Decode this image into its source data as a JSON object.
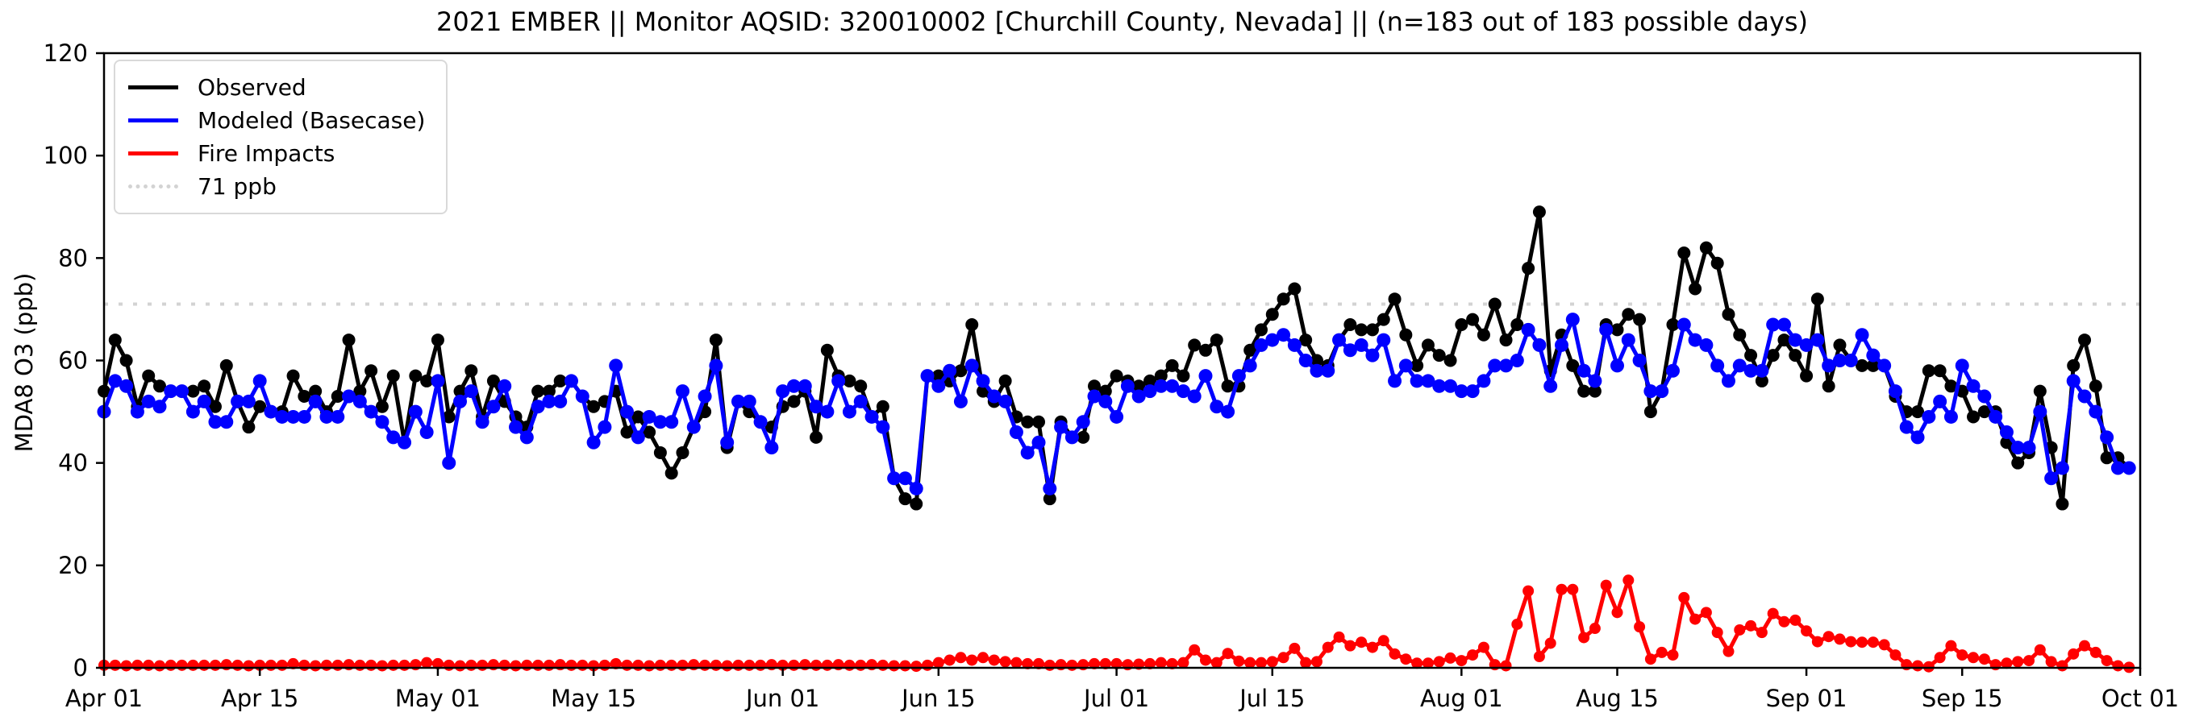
{
  "title": "2021 EMBER || Monitor AQSID: 320010002 [Churchill County, Nevada] || (n=183 out of 183 possible days)",
  "ylabel": "MDA8 O3 (ppb)",
  "legend": [
    {
      "label": "Observed",
      "color": "#000000",
      "style": "solid"
    },
    {
      "label": "Modeled (Basecase)",
      "color": "#0000ff",
      "style": "solid"
    },
    {
      "label": "Fire Impacts",
      "color": "#ff0000",
      "style": "solid"
    },
    {
      "label": "71 ppb",
      "color": "#d3d3d3",
      "style": "dotted"
    }
  ],
  "chart_data": {
    "type": "line",
    "title": "2021 EMBER || Monitor AQSID: 320010002 [Churchill County, Nevada] || (n=183 out of 183 possible days)",
    "xlabel": "",
    "ylabel": "MDA8 O3 (ppb)",
    "ylim": [
      0,
      120
    ],
    "yticks": [
      0,
      20,
      40,
      60,
      80,
      100,
      120
    ],
    "x_tick_labels": [
      "Apr 01",
      "Apr 15",
      "May 01",
      "May 15",
      "Jun 01",
      "Jun 15",
      "Jul 01",
      "Jul 15",
      "Aug 01",
      "Aug 15",
      "Sep 01",
      "Sep 15",
      "Oct 01"
    ],
    "x_tick_day_index": [
      0,
      14,
      30,
      44,
      61,
      75,
      91,
      105,
      122,
      136,
      153,
      167,
      183
    ],
    "n_days": 183,
    "x_start_label": "Apr 01",
    "x_end_label": "Oct 01",
    "grid": false,
    "legend_position": "upper left",
    "reference_line": {
      "value": 71,
      "label": "71 ppb",
      "color": "#d3d3d3",
      "style": "dotted"
    },
    "marker": "circle",
    "series": [
      {
        "name": "Observed",
        "color": "#000000",
        "values": [
          54,
          64,
          60,
          51,
          57,
          55,
          54,
          54,
          54,
          55,
          51,
          59,
          52,
          47,
          51,
          50,
          50,
          57,
          53,
          54,
          50,
          53,
          64,
          54,
          58,
          51,
          57,
          44,
          57,
          56,
          64,
          49,
          54,
          58,
          49,
          56,
          52,
          49,
          47,
          54,
          54,
          56,
          56,
          53,
          51,
          52,
          54,
          46,
          49,
          46,
          42,
          38,
          42,
          47,
          50,
          64,
          43,
          52,
          50,
          48,
          47,
          51,
          52,
          54,
          45,
          62,
          57,
          56,
          55,
          49,
          51,
          37,
          33,
          32,
          57,
          57,
          56,
          58,
          67,
          54,
          52,
          56,
          49,
          48,
          48,
          33,
          48,
          45,
          45,
          55,
          54,
          57,
          56,
          55,
          56,
          57,
          59,
          57,
          63,
          62,
          64,
          55,
          55,
          62,
          66,
          69,
          72,
          74,
          64,
          60,
          59,
          64,
          67,
          66,
          66,
          68,
          72,
          65,
          59,
          63,
          61,
          60,
          67,
          68,
          65,
          71,
          64,
          67,
          78,
          89,
          58,
          65,
          59,
          54,
          54,
          67,
          66,
          69,
          68,
          50,
          54,
          67,
          81,
          74,
          82,
          79,
          69,
          65,
          61,
          56,
          61,
          64,
          61,
          57,
          72,
          55,
          63,
          60,
          59,
          59,
          59,
          53,
          50,
          50,
          58,
          58,
          55,
          54,
          49,
          50,
          50,
          44,
          40,
          42,
          54,
          43,
          32,
          59,
          64,
          55,
          41,
          41,
          39
        ]
      },
      {
        "name": "Modeled (Basecase)",
        "color": "#0000ff",
        "values": [
          50,
          56,
          55,
          50,
          52,
          51,
          54,
          54,
          50,
          52,
          48,
          48,
          52,
          52,
          56,
          50,
          49,
          49,
          49,
          52,
          49,
          49,
          53,
          52,
          50,
          48,
          45,
          44,
          50,
          46,
          56,
          40,
          52,
          54,
          48,
          51,
          55,
          47,
          45,
          51,
          52,
          52,
          56,
          53,
          44,
          47,
          59,
          50,
          45,
          49,
          48,
          48,
          54,
          47,
          53,
          59,
          44,
          52,
          52,
          48,
          43,
          54,
          55,
          55,
          51,
          50,
          56,
          50,
          52,
          49,
          47,
          37,
          37,
          35,
          57,
          55,
          58,
          52,
          59,
          56,
          53,
          52,
          46,
          42,
          44,
          35,
          47,
          45,
          48,
          53,
          52,
          49,
          55,
          53,
          54,
          55,
          55,
          54,
          53,
          57,
          51,
          50,
          57,
          59,
          63,
          64,
          65,
          63,
          60,
          58,
          58,
          64,
          62,
          63,
          61,
          64,
          56,
          59,
          56,
          56,
          55,
          55,
          54,
          54,
          56,
          59,
          59,
          60,
          66,
          63,
          55,
          63,
          68,
          58,
          56,
          66,
          59,
          64,
          60,
          54,
          54,
          58,
          67,
          64,
          63,
          59,
          56,
          59,
          58,
          58,
          67,
          67,
          64,
          63,
          64,
          59,
          60,
          60,
          65,
          61,
          59,
          54,
          47,
          45,
          49,
          52,
          49,
          59,
          55,
          53,
          49,
          46,
          43,
          43,
          50,
          37,
          39,
          56,
          53,
          50,
          45,
          39,
          39
        ]
      },
      {
        "name": "Fire Impacts",
        "color": "#ff0000",
        "values": [
          0.5,
          0.5,
          0.4,
          0.5,
          0.5,
          0.4,
          0.5,
          0.5,
          0.5,
          0.5,
          0.5,
          0.6,
          0.5,
          0.4,
          0.5,
          0.5,
          0.5,
          0.8,
          0.5,
          0.4,
          0.5,
          0.5,
          0.6,
          0.5,
          0.5,
          0.4,
          0.5,
          0.5,
          0.6,
          1.0,
          0.8,
          0.5,
          0.4,
          0.5,
          0.5,
          0.6,
          0.5,
          0.4,
          0.5,
          0.5,
          0.5,
          0.6,
          0.5,
          0.5,
          0.4,
          0.5,
          0.8,
          0.5,
          0.5,
          0.4,
          0.5,
          0.5,
          0.5,
          0.6,
          0.5,
          0.5,
          0.4,
          0.5,
          0.5,
          0.5,
          0.6,
          0.5,
          0.5,
          0.6,
          0.5,
          0.5,
          0.6,
          0.5,
          0.5,
          0.6,
          0.5,
          0.4,
          0.4,
          0.3,
          0.5,
          1.0,
          1.5,
          2.0,
          1.5,
          2.0,
          1.5,
          1.2,
          1.0,
          0.8,
          0.8,
          0.5,
          0.6,
          0.5,
          0.6,
          0.8,
          0.8,
          0.8,
          0.6,
          0.7,
          0.8,
          1.0,
          0.8,
          1.0,
          3.5,
          1.5,
          1.0,
          2.8,
          1.3,
          1.0,
          1.0,
          1.2,
          2.0,
          3.8,
          1.0,
          1.2,
          4.0,
          6.0,
          4.3,
          5.0,
          4.0,
          5.3,
          2.7,
          1.7,
          0.9,
          0.9,
          1.2,
          1.9,
          1.4,
          2.5,
          4.0,
          0.6,
          0.4,
          8.5,
          15.0,
          2.2,
          4.8,
          15.3,
          15.3,
          5.9,
          7.7,
          16.1,
          10.8,
          17.1,
          8.0,
          1.7,
          3.0,
          2.5,
          13.7,
          9.5,
          10.8,
          6.9,
          3.2,
          7.4,
          8.2,
          6.9,
          10.6,
          9.0,
          9.3,
          7.2,
          5.1,
          6.1,
          5.6,
          5.1,
          5.0,
          5.0,
          4.5,
          2.5,
          0.6,
          0.4,
          0.2,
          2.0,
          4.3,
          2.5,
          2.0,
          1.7,
          0.6,
          0.9,
          1.2,
          1.4,
          3.5,
          1.2,
          0.4,
          2.7,
          4.3,
          3.0,
          1.4,
          0.4,
          0.1
        ]
      }
    ]
  }
}
